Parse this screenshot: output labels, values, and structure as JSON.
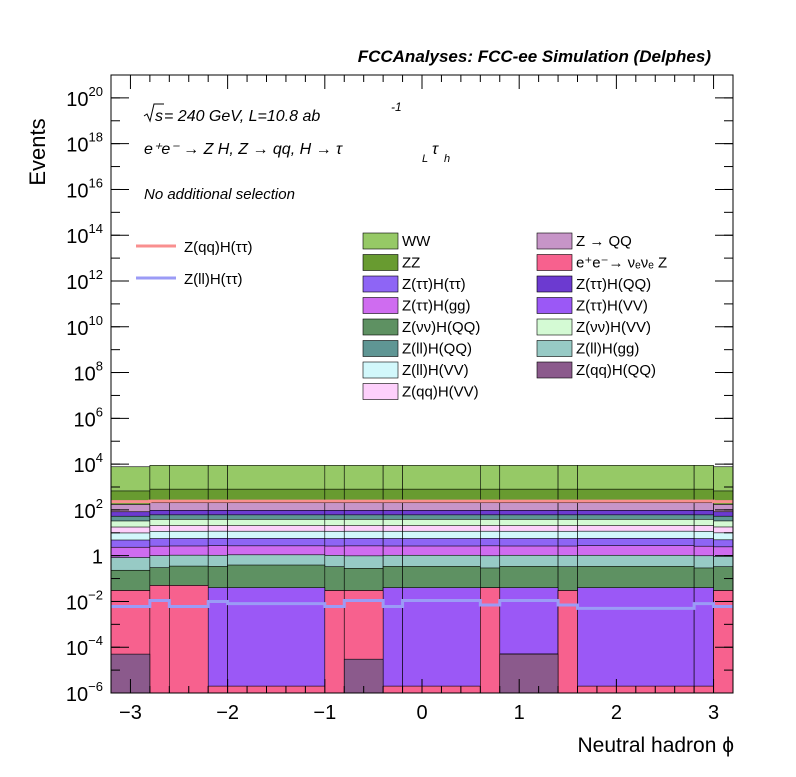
{
  "figure": {
    "header": "FCCAnalyses: FCC-ee Simulation (Delphes)",
    "sqrt_s": "s",
    "energy_lumi": " = 240 GeV, L=10.8 ab",
    "lumi_exp": "-1",
    "process_text": "e⁺e⁻ → Z H, Z  → qq, H  →  τ",
    "process_sub1": "L",
    "process_tau2": "τ",
    "process_sub2": "h",
    "selection": "No additional selection"
  },
  "chart_data": {
    "type": "histogram-stacked",
    "xlabel": "Neutral hadron ϕ",
    "ylabel": "Events",
    "log_y": true,
    "xlim": [
      -3.2,
      3.2
    ],
    "ylim": [
      1e-06,
      1e+21
    ],
    "grid": false,
    "legend_placement": "top-center",
    "x_ticks": [
      {
        "v": -3,
        "label": "−3"
      },
      {
        "v": -2,
        "label": "−2"
      },
      {
        "v": -1,
        "label": "−1"
      },
      {
        "v": 0,
        "label": "0"
      },
      {
        "v": 1,
        "label": "1"
      },
      {
        "v": 2,
        "label": "2"
      },
      {
        "v": 3,
        "label": "3"
      }
    ],
    "y_ticks": [
      {
        "exp": -6,
        "base": "10",
        "sup": "−6"
      },
      {
        "exp": -4,
        "base": "10",
        "sup": "−4"
      },
      {
        "exp": -2,
        "base": "10",
        "sup": "−2"
      },
      {
        "exp": 0,
        "base": "1",
        "sup": ""
      },
      {
        "exp": 2,
        "base": "10",
        "sup": "2"
      },
      {
        "exp": 4,
        "base": "10",
        "sup": "4"
      },
      {
        "exp": 6,
        "base": "10",
        "sup": "6"
      },
      {
        "exp": 8,
        "base": "10",
        "sup": "8"
      },
      {
        "exp": 10,
        "base": "10",
        "sup": "10"
      },
      {
        "exp": 12,
        "base": "10",
        "sup": "12"
      },
      {
        "exp": 14,
        "base": "10",
        "sup": "14"
      },
      {
        "exp": 16,
        "base": "10",
        "sup": "16"
      },
      {
        "exp": 18,
        "base": "10",
        "sup": "18"
      },
      {
        "exp": 20,
        "base": "10",
        "sup": "20"
      }
    ],
    "bin_edges": [
      -3.2,
      -2.8,
      -2.6,
      -2.2,
      -2.0,
      -1.0,
      -0.8,
      -0.4,
      -0.2,
      0.6,
      0.8,
      1.4,
      1.6,
      2.8,
      3.0,
      3.2
    ],
    "stack": [
      {
        "name": "Z(qq)H(QQ)",
        "color": "#8b5a8c",
        "values": [
          5e-05,
          1e-06,
          1e-06,
          1e-06,
          1e-06,
          1e-06,
          3e-05,
          1e-06,
          1e-06,
          1e-06,
          5e-05,
          1e-06,
          1e-06,
          1e-06,
          1e-06
        ]
      },
      {
        "name": "e⁺e⁻→ νₑνₑ Z",
        "color": "#f7618e",
        "values": [
          0.03,
          0.05,
          0.05,
          1e-06,
          1e-06,
          0.03,
          0.03,
          1e-06,
          1e-06,
          0.04,
          1e-06,
          0.03,
          1e-06,
          1e-06,
          0.03
        ]
      },
      {
        "name": "Z(ττ)H(VV)",
        "color": "#9b58f6",
        "values": [
          1e-06,
          1e-06,
          1e-06,
          0.04,
          0.04,
          1e-06,
          1e-06,
          0.04,
          0.04,
          1e-06,
          0.04,
          1e-06,
          0.04,
          0.04,
          1e-06
        ]
      },
      {
        "name": "Z(νν)H(QQ)",
        "color": "#5e9162",
        "values": [
          0.2,
          0.25,
          0.3,
          0.3,
          0.35,
          0.3,
          0.25,
          0.3,
          0.3,
          0.25,
          0.3,
          0.3,
          0.3,
          0.25,
          0.3
        ]
      },
      {
        "name": "Z(ll)H(gg)",
        "color": "#97cac5",
        "values": [
          0.6,
          0.7,
          0.7,
          0.7,
          0.7,
          0.7,
          0.7,
          0.7,
          0.7,
          0.7,
          0.7,
          0.7,
          0.7,
          0.7,
          0.6
        ]
      },
      {
        "name": "Z(ττ)H(gg)",
        "color": "#cf6cf0",
        "values": [
          1.5,
          1.6,
          1.6,
          1.7,
          1.6,
          1.6,
          1.7,
          1.6,
          1.6,
          1.7,
          1.6,
          1.6,
          1.7,
          1.6,
          1.5
        ]
      },
      {
        "name": "Z(ττ)H(ττ)",
        "color": "#8e65f5",
        "values": [
          2.5,
          3,
          3,
          3,
          3,
          3,
          3,
          3,
          3,
          3,
          3,
          3,
          3,
          3,
          2.5
        ]
      },
      {
        "name": "Z(ll)H(VV)",
        "color": "#d2f8fb",
        "values": [
          5,
          6,
          6,
          6,
          6,
          6,
          6,
          6,
          6,
          6,
          6,
          6,
          6,
          6,
          5
        ]
      },
      {
        "name": "Z(qq)H(VV)",
        "color": "#fdd0fb",
        "values": [
          8,
          9,
          9,
          9,
          9,
          9,
          9,
          9,
          9,
          9,
          9,
          9,
          9,
          9,
          8
        ]
      },
      {
        "name": "Z(νν)H(VV)",
        "color": "#d4fad4",
        "values": [
          15,
          18,
          18,
          18,
          18,
          18,
          18,
          18,
          18,
          18,
          18,
          18,
          18,
          18,
          15
        ]
      },
      {
        "name": "Z(ll)H(QQ)",
        "color": "#5f9694",
        "values": [
          20,
          22,
          22,
          22,
          22,
          22,
          22,
          22,
          22,
          22,
          22,
          22,
          22,
          22,
          20
        ]
      },
      {
        "name": "Z(ττ)H(QQ)",
        "color": "#6c3ad0",
        "values": [
          30,
          35,
          35,
          35,
          35,
          35,
          35,
          35,
          35,
          35,
          35,
          35,
          35,
          35,
          30
        ]
      },
      {
        "name": "Z → QQ",
        "color": "#c795c8",
        "values": [
          90,
          110,
          110,
          110,
          110,
          110,
          110,
          110,
          110,
          110,
          110,
          110,
          110,
          110,
          90
        ]
      },
      {
        "name": "ZZ",
        "color": "#689b30",
        "values": [
          500,
          600,
          600,
          600,
          600,
          600,
          600,
          600,
          600,
          600,
          600,
          600,
          600,
          600,
          500
        ]
      },
      {
        "name": "WW",
        "color": "#96c966",
        "values": [
          7000,
          8000,
          8000,
          8000,
          8000,
          8000,
          8000,
          8000,
          8000,
          8000,
          8000,
          8000,
          8000,
          8000,
          7000
        ]
      }
    ],
    "signals": [
      {
        "name": "Z(qq)H(ττ)",
        "color": "#f98f8f",
        "values": [
          230,
          240,
          240,
          240,
          240,
          240,
          240,
          240,
          240,
          240,
          240,
          240,
          240,
          240,
          230
        ]
      },
      {
        "name": "Z(ll)H(ττ)",
        "color": "#9b9bf6",
        "values": [
          0.006,
          0.011,
          0.006,
          0.01,
          0.008,
          0.006,
          0.011,
          0.006,
          0.011,
          0.007,
          0.011,
          0.007,
          0.005,
          0.008,
          0.006
        ]
      }
    ],
    "legend_columns": [
      [
        "WW",
        "ZZ",
        "Z(ττ)H(ττ)",
        "Z(ττ)H(gg)",
        "Z(νν)H(QQ)",
        "Z(ll)H(QQ)",
        "Z(ll)H(VV)",
        "Z(qq)H(VV)"
      ],
      [
        "Z → QQ",
        "e⁺e⁻→ νₑνₑ Z",
        "Z(ττ)H(QQ)",
        "Z(ττ)H(VV)",
        "Z(νν)H(VV)",
        "Z(ll)H(gg)",
        "Z(qq)H(QQ)"
      ]
    ]
  }
}
